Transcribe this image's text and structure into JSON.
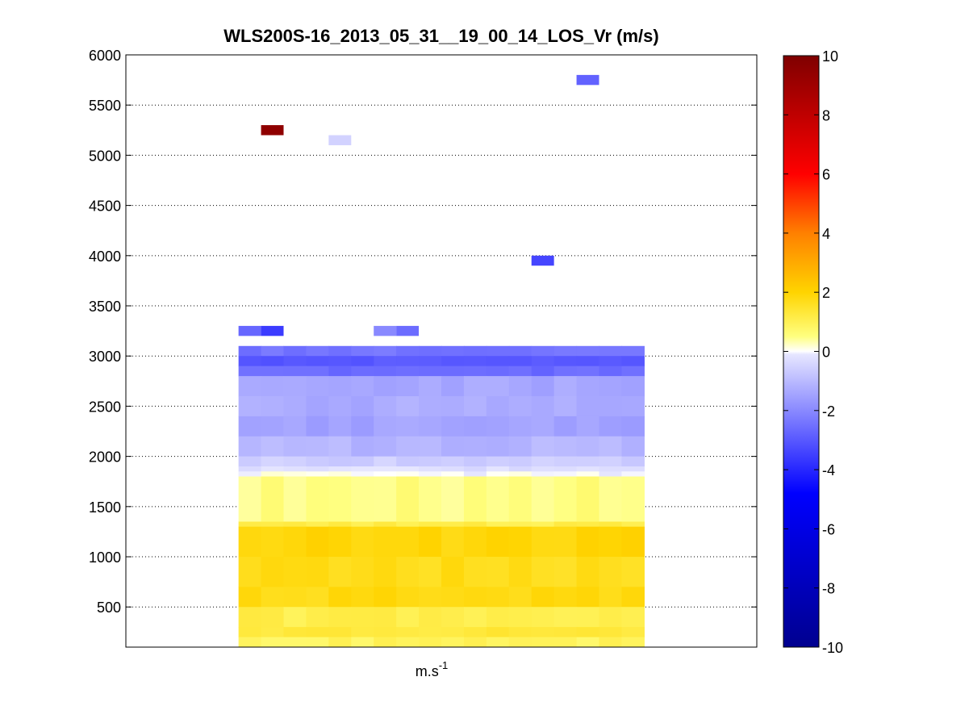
{
  "chart_data": {
    "type": "heatmap",
    "title": "WLS200S-16_2013_05_31__19_00_14_LOS_Vr (m/s)",
    "xlabel": "m.s",
    "xlabel_superscript": "-1",
    "ylabel": "",
    "ylim": [
      100,
      6000
    ],
    "yticks": [
      500,
      1000,
      1500,
      2000,
      2500,
      3000,
      3500,
      4000,
      4500,
      5000,
      5500,
      6000
    ],
    "grid": "horizontal-dotted",
    "colorbar": {
      "range": [
        -10,
        10
      ],
      "ticks": [
        -10,
        -8,
        -6,
        -4,
        -2,
        0,
        2,
        4,
        6,
        8,
        10
      ],
      "placement": "right",
      "stops": [
        {
          "v": -10,
          "c": "#00008f"
        },
        {
          "v": -4.8,
          "c": "#0000ff"
        },
        {
          "v": -0.1,
          "c": "#e6e6ff"
        },
        {
          "v": 0,
          "c": "#ffffff"
        },
        {
          "v": 0.5,
          "c": "#ffff80"
        },
        {
          "v": 2,
          "c": "#ffd400"
        },
        {
          "v": 4,
          "c": "#ff8000"
        },
        {
          "v": 6,
          "c": "#ff0000"
        },
        {
          "v": 10,
          "c": "#7f0000"
        }
      ]
    },
    "columns": 18,
    "column_start_index": 5,
    "column_span": 28,
    "profile_bands": [
      {
        "y0": 3000,
        "y1": 3100,
        "v": -2.4
      },
      {
        "y0": 2900,
        "y1": 3000,
        "v": -3.0
      },
      {
        "y0": 2800,
        "y1": 2900,
        "v": -2.6
      },
      {
        "y0": 2600,
        "y1": 2800,
        "v": -1.4
      },
      {
        "y0": 2400,
        "y1": 2600,
        "v": -1.3
      },
      {
        "y0": 2200,
        "y1": 2400,
        "v": -1.5
      },
      {
        "y0": 2000,
        "y1": 2200,
        "v": -1.1
      },
      {
        "y0": 1900,
        "y1": 2000,
        "v": -0.6
      },
      {
        "y0": 1850,
        "y1": 1900,
        "v": -0.25
      },
      {
        "y0": 1800,
        "y1": 1850,
        "v": 0.02
      },
      {
        "y0": 1350,
        "y1": 1800,
        "v": 0.55
      },
      {
        "y0": 1300,
        "y1": 1350,
        "v": 1.1
      },
      {
        "y0": 1000,
        "y1": 1300,
        "v": 1.9
      },
      {
        "y0": 700,
        "y1": 1000,
        "v": 1.7
      },
      {
        "y0": 500,
        "y1": 700,
        "v": 1.8
      },
      {
        "y0": 300,
        "y1": 500,
        "v": 1.1
      },
      {
        "y0": 200,
        "y1": 300,
        "v": 1.3
      },
      {
        "y0": 100,
        "y1": 200,
        "v": 0.9
      }
    ],
    "isolated_cells": [
      {
        "col": 0,
        "y0": 3200,
        "y1": 3300,
        "v": -2.7
      },
      {
        "col": 1,
        "y0": 3200,
        "y1": 3300,
        "v": -3.6
      },
      {
        "col": 6,
        "y0": 3200,
        "y1": 3300,
        "v": -2.0
      },
      {
        "col": 7,
        "y0": 3200,
        "y1": 3300,
        "v": -2.6
      },
      {
        "col": 1,
        "y0": 5200,
        "y1": 5300,
        "v": 9.5
      },
      {
        "col": 4,
        "y0": 5100,
        "y1": 5200,
        "v": -0.5
      },
      {
        "col": 13,
        "y0": 3900,
        "y1": 4000,
        "v": -3.4
      },
      {
        "col": 15,
        "y0": 5700,
        "y1": 5800,
        "v": -2.8
      }
    ]
  }
}
